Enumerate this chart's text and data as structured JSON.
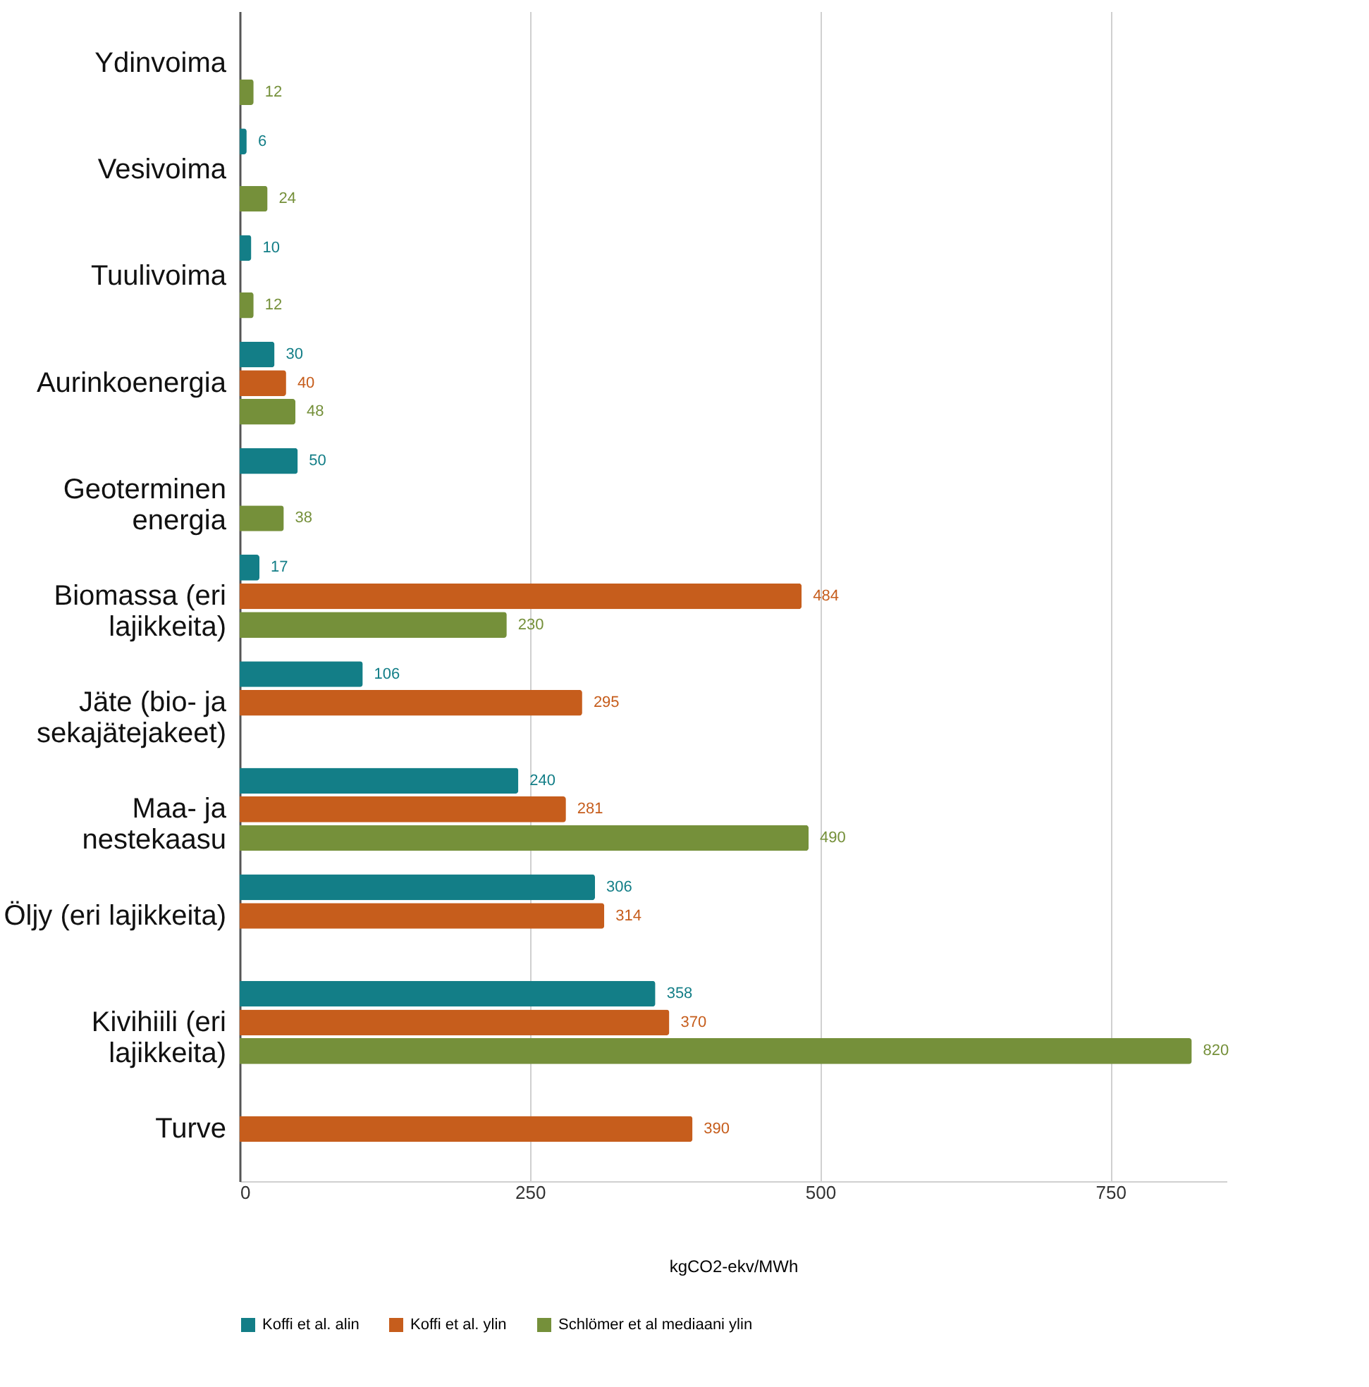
{
  "chart_data": {
    "type": "bar",
    "orientation": "horizontal",
    "xlabel": "kgCO2-ekv/MWh",
    "categories": [
      "Ydinvoima",
      "Vesivoima",
      "Tuulivoima",
      "Aurinkoenergia",
      "Geoterminen\nenergia",
      "Biomassa (eri\nlajikkeita)",
      "Jäte (bio- ja\nsekajätejakeet)",
      "Maa- ja\nnestekaasu",
      "Öljy (eri lajikkeita)",
      "Kivihiili (eri\nlajikkeita)",
      "Turve"
    ],
    "series": [
      {
        "name": "Koffi et al. alin",
        "color": "#137e87",
        "values": [
          null,
          6,
          10,
          30,
          50,
          17,
          106,
          240,
          306,
          358,
          null
        ]
      },
      {
        "name": "Koffi et al. ylin",
        "color": "#c65d1c",
        "values": [
          null,
          null,
          null,
          40,
          null,
          484,
          295,
          281,
          314,
          370,
          390
        ]
      },
      {
        "name": "Schlömer et al mediaani ylin",
        "color": "#75903a",
        "values": [
          12,
          24,
          12,
          48,
          38,
          230,
          null,
          490,
          null,
          820,
          null
        ]
      }
    ],
    "xlim": [
      0,
      850
    ],
    "xticks": [
      0,
      250,
      500,
      750
    ],
    "grid": "x",
    "legend": "bottom",
    "data_labels": true
  }
}
